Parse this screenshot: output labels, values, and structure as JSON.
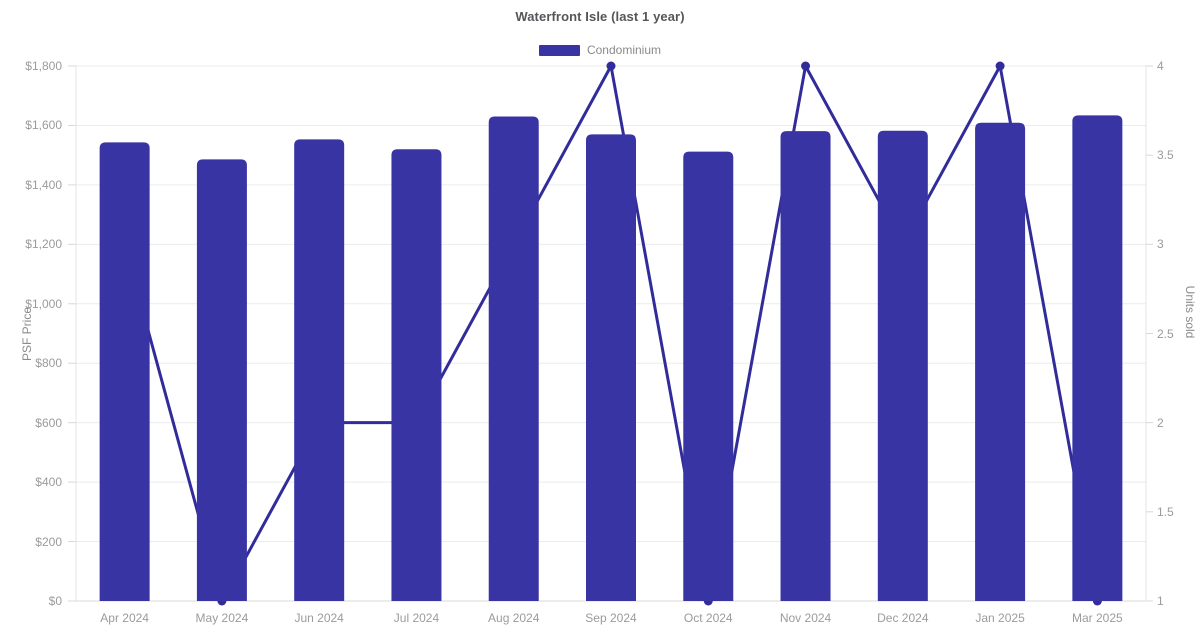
{
  "page": {
    "background": "#ffffff"
  },
  "chart_data": {
    "type": "bar",
    "title": "Waterfront Isle (last 1 year)",
    "legend": [
      {
        "label": "Condominium",
        "color": "#3934a3"
      }
    ],
    "legend_position": "top-center",
    "grid": "horizontal-only",
    "categories": [
      "Apr 2024",
      "May 2024",
      "Jun 2024",
      "Jul 2024",
      "Aug 2024",
      "Sep 2024",
      "Oct 2024",
      "Nov 2024",
      "Dec 2024",
      "Jan 2025",
      "Mar 2025"
    ],
    "series": [
      {
        "name": "Condominium",
        "type": "bar",
        "axis": "left",
        "values": [
          1543,
          1486,
          1553,
          1520,
          1630,
          1570,
          1512,
          1581,
          1582,
          1609,
          1634
        ]
      },
      {
        "name": "Units sold",
        "type": "line",
        "axis": "right",
        "values": [
          3,
          1,
          2,
          2,
          3,
          4,
          1,
          4,
          3,
          4,
          1
        ]
      }
    ],
    "left_axis": {
      "label": "PSF Price",
      "min": 0,
      "max": 1800,
      "tick_step": 200,
      "tick_values": [
        0,
        200,
        400,
        600,
        800,
        1000,
        1200,
        1400,
        1600,
        1800
      ],
      "tick_labels": [
        "$0",
        "$200",
        "$400",
        "$600",
        "$800",
        "$1,000",
        "$1,200",
        "$1,400",
        "$1,600",
        "$1,800"
      ]
    },
    "right_axis": {
      "label": "Units sold",
      "min": 1,
      "max": 4,
      "tick_step": 0.5,
      "tick_values": [
        1,
        1.5,
        2,
        2.5,
        3,
        3.5,
        4
      ],
      "tick_labels": [
        "1",
        "1.5",
        "2",
        "2.5",
        "3",
        "3.5",
        "4"
      ]
    },
    "colors": {
      "bar": "#3934a3",
      "line": "#322c9b",
      "point": "#322c9b",
      "grid": "#ececec",
      "baseline": "#d8d8d8",
      "plot_border": "#e5e5e5",
      "tick_mark": "#d8d8d8",
      "title_text": "#55565a",
      "tick_text": "#9b9b9b",
      "axis_title_text": "#8b8b8b",
      "legend_text": "#8a8a8a"
    }
  }
}
